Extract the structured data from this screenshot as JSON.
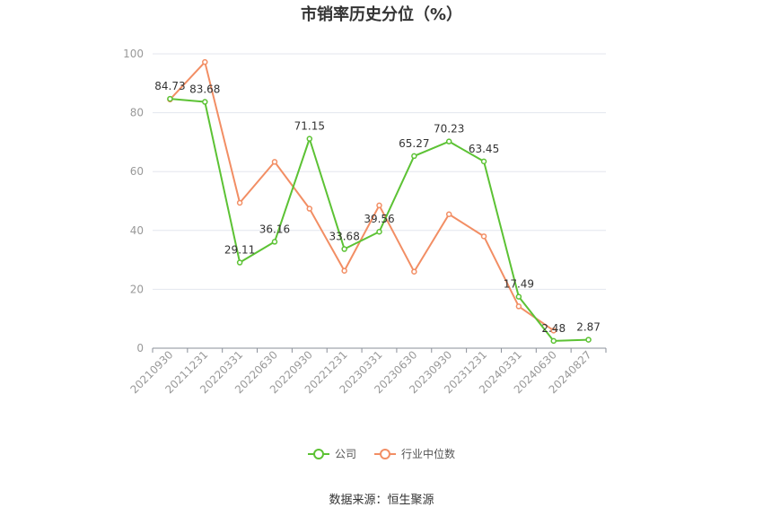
{
  "chart_data": {
    "type": "line",
    "title": "市销率历史分位（%）",
    "categories": [
      "20210930",
      "20211231",
      "20220331",
      "20220630",
      "20220930",
      "20221231",
      "20230331",
      "20230630",
      "20230930",
      "20231231",
      "20240331",
      "20240630",
      "20240827"
    ],
    "ylim": [
      0,
      100
    ],
    "yticks": [
      0,
      20,
      40,
      60,
      80,
      100
    ],
    "grid": true,
    "legend_position": "bottom",
    "series": [
      {
        "name": "公司",
        "color": "#5cc234",
        "values": [
          84.73,
          83.68,
          29.11,
          36.16,
          71.15,
          33.68,
          39.56,
          65.27,
          70.23,
          63.45,
          17.49,
          2.48,
          2.87
        ],
        "labels": [
          "84.73",
          "83.68",
          "29.11",
          "36.16",
          "71.15",
          "33.68",
          "39.56",
          "65.27",
          "70.23",
          "63.45",
          "17.49",
          "2.48",
          "2.87"
        ]
      },
      {
        "name": "行业中位数",
        "color": "#f28e64",
        "values": [
          84.5,
          97.2,
          49.4,
          63.3,
          47.4,
          26.3,
          48.5,
          26.0,
          45.5,
          38.0,
          14.2,
          6.0,
          null
        ],
        "labels": []
      }
    ]
  },
  "source": "数据来源：恒生聚源"
}
